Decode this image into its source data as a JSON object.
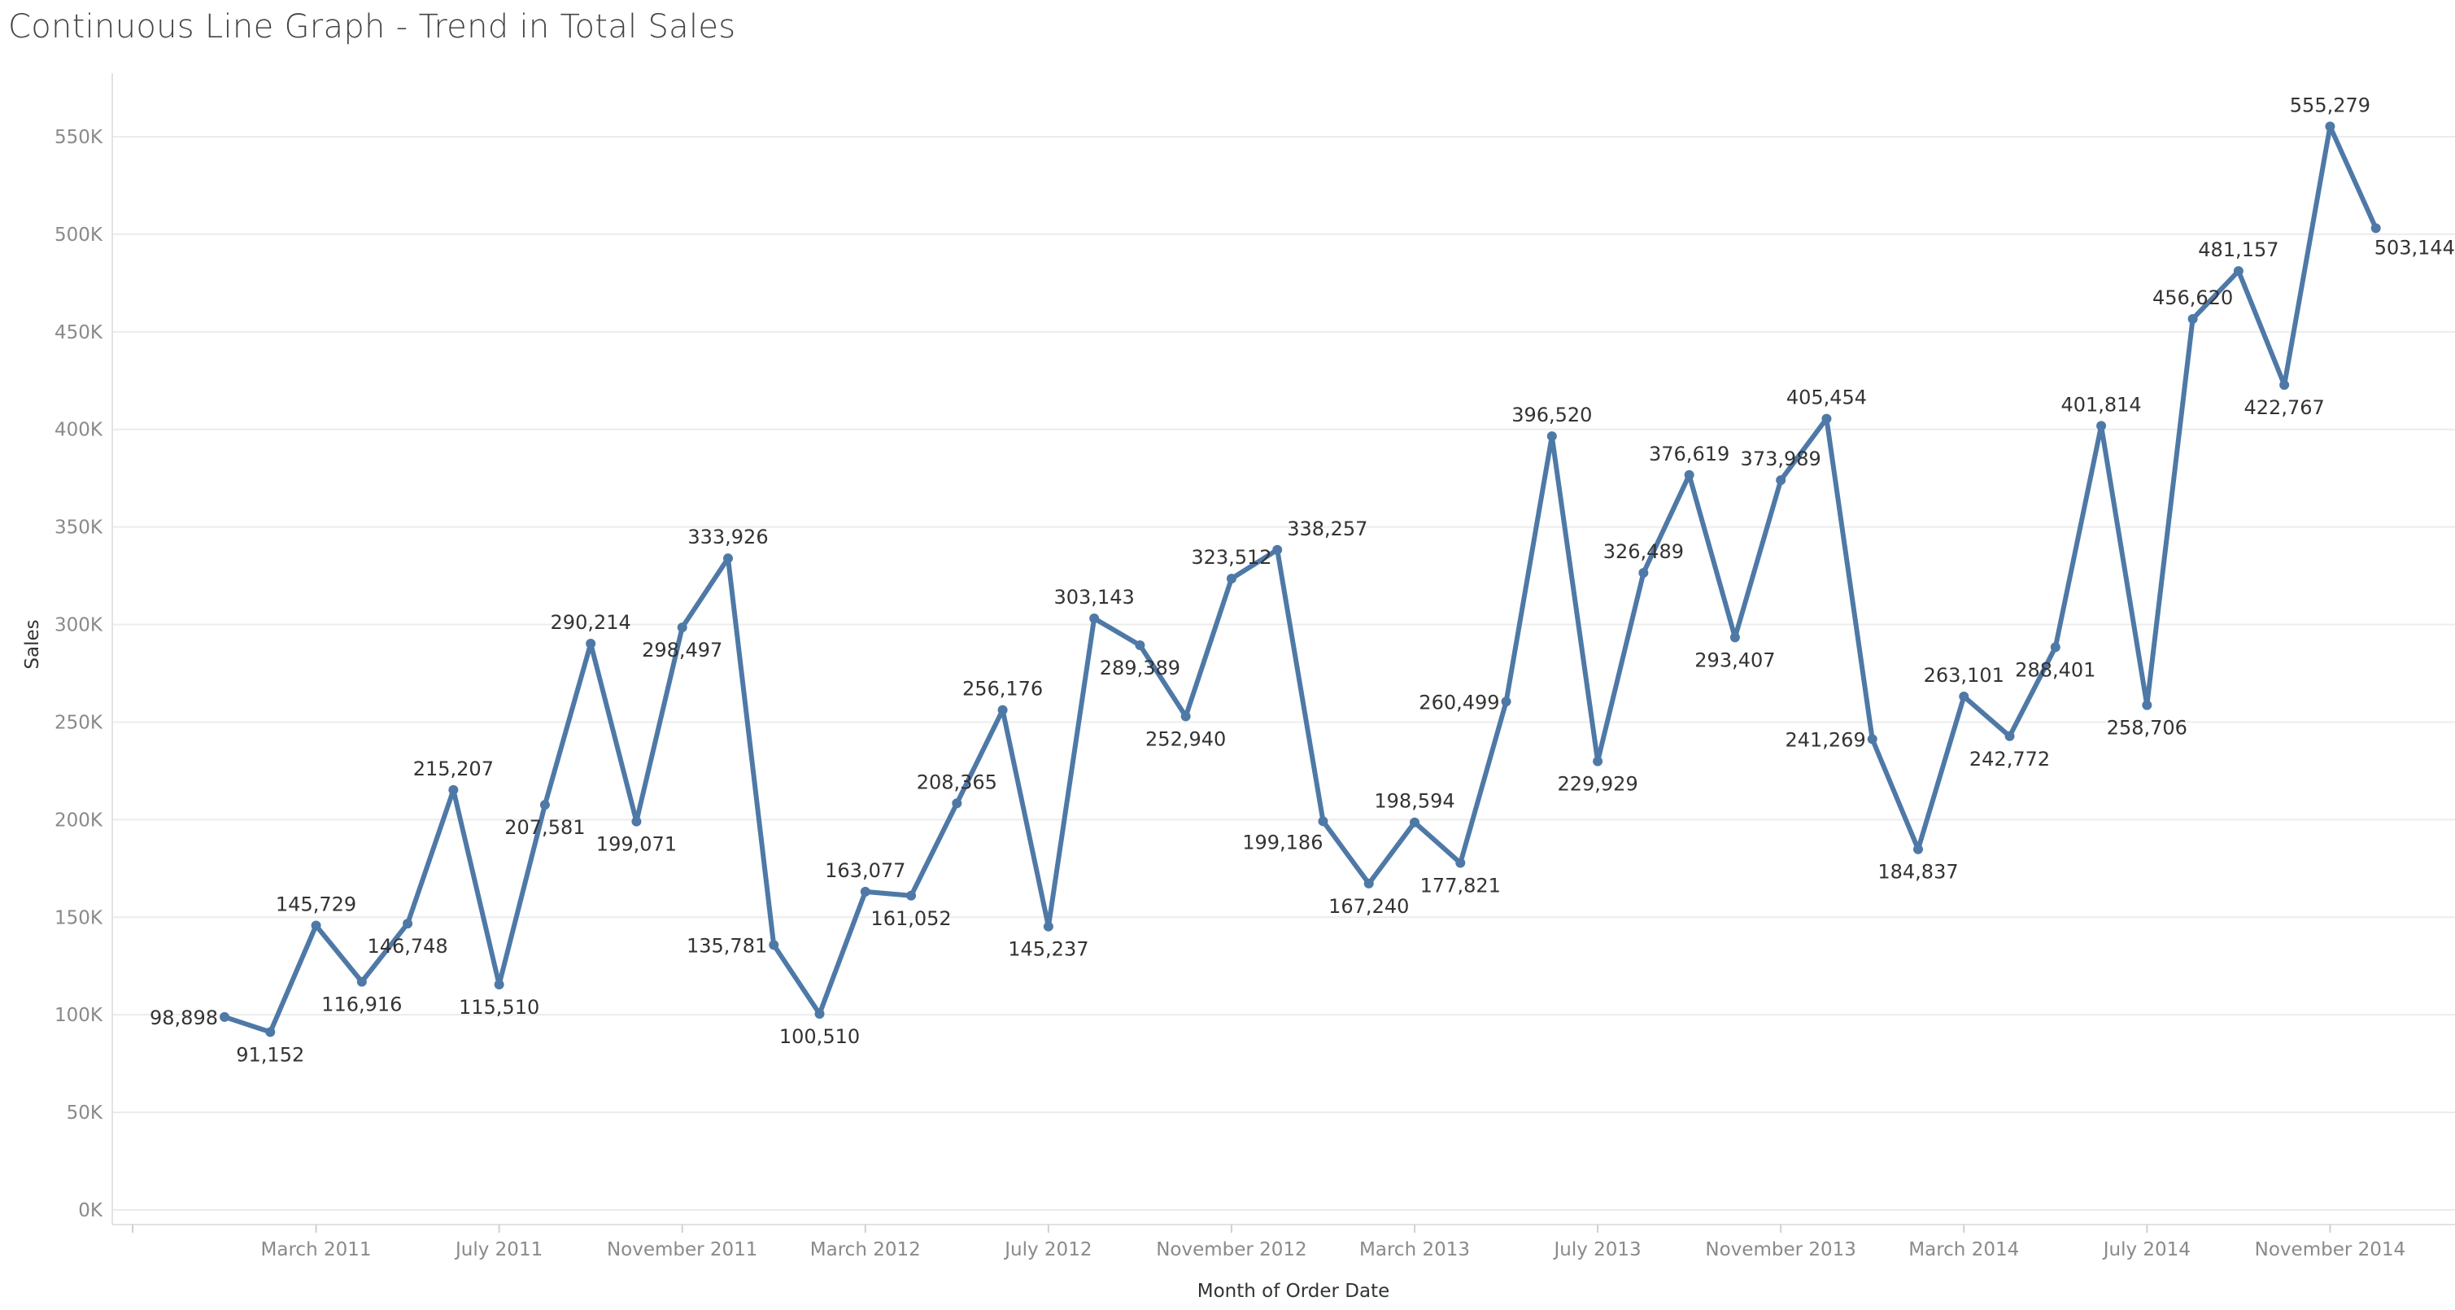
{
  "title": "Continuous Line Graph - Trend in Total Sales",
  "chart_data": {
    "type": "line",
    "title": "Continuous Line Graph - Trend in Total Sales",
    "xlabel": "Month of Order Date",
    "ylabel": "Sales",
    "ylim": [
      0,
      570000
    ],
    "yticks": [
      {
        "value": 0,
        "label": "0K"
      },
      {
        "value": 50000,
        "label": "50K"
      },
      {
        "value": 100000,
        "label": "100K"
      },
      {
        "value": 150000,
        "label": "150K"
      },
      {
        "value": 200000,
        "label": "200K"
      },
      {
        "value": 250000,
        "label": "250K"
      },
      {
        "value": 300000,
        "label": "300K"
      },
      {
        "value": 350000,
        "label": "350K"
      },
      {
        "value": 400000,
        "label": "400K"
      },
      {
        "value": 450000,
        "label": "450K"
      },
      {
        "value": 500000,
        "label": "500K"
      },
      {
        "value": 550000,
        "label": "550K"
      }
    ],
    "xticks": [
      {
        "date": "2011-03",
        "label": "March 2011"
      },
      {
        "date": "2011-07",
        "label": "July 2011"
      },
      {
        "date": "2011-11",
        "label": "November 2011"
      },
      {
        "date": "2012-03",
        "label": "March 2012"
      },
      {
        "date": "2012-07",
        "label": "July 2012"
      },
      {
        "date": "2012-11",
        "label": "November 2012"
      },
      {
        "date": "2013-03",
        "label": "March 2013"
      },
      {
        "date": "2013-07",
        "label": "July 2013"
      },
      {
        "date": "2013-11",
        "label": "November 2013"
      },
      {
        "date": "2014-03",
        "label": "March 2014"
      },
      {
        "date": "2014-07",
        "label": "July 2014"
      },
      {
        "date": "2014-11",
        "label": "November 2014"
      }
    ],
    "line_color": "#4e79a7",
    "series": [
      {
        "points": [
          {
            "date": "2011-01",
            "value": 98898,
            "label": "98,898"
          },
          {
            "date": "2011-02",
            "value": 91152,
            "label": "91,152"
          },
          {
            "date": "2011-03",
            "value": 145729,
            "label": "145,729"
          },
          {
            "date": "2011-04",
            "value": 116916,
            "label": "116,916"
          },
          {
            "date": "2011-05",
            "value": 146748,
            "label": "146,748"
          },
          {
            "date": "2011-06",
            "value": 215207,
            "label": "215,207"
          },
          {
            "date": "2011-07",
            "value": 115510,
            "label": "115,510"
          },
          {
            "date": "2011-08",
            "value": 207581,
            "label": "207,581"
          },
          {
            "date": "2011-09",
            "value": 290214,
            "label": "290,214"
          },
          {
            "date": "2011-10",
            "value": 199071,
            "label": "199,071"
          },
          {
            "date": "2011-11",
            "value": 298497,
            "label": "298,497"
          },
          {
            "date": "2011-12",
            "value": 333926,
            "label": "333,926"
          },
          {
            "date": "2012-01",
            "value": 135781,
            "label": "135,781"
          },
          {
            "date": "2012-02",
            "value": 100510,
            "label": "100,510"
          },
          {
            "date": "2012-03",
            "value": 163077,
            "label": "163,077"
          },
          {
            "date": "2012-04",
            "value": 161052,
            "label": "161,052"
          },
          {
            "date": "2012-05",
            "value": 208365,
            "label": "208,365"
          },
          {
            "date": "2012-06",
            "value": 256176,
            "label": "256,176"
          },
          {
            "date": "2012-07",
            "value": 145237,
            "label": "145,237"
          },
          {
            "date": "2012-08",
            "value": 303143,
            "label": "303,143"
          },
          {
            "date": "2012-09",
            "value": 289389,
            "label": "289,389"
          },
          {
            "date": "2012-10",
            "value": 252940,
            "label": "252,940"
          },
          {
            "date": "2012-11",
            "value": 323512,
            "label": "323,512"
          },
          {
            "date": "2012-12",
            "value": 338257,
            "label": "338,257"
          },
          {
            "date": "2013-01",
            "value": 199186,
            "label": "199,186"
          },
          {
            "date": "2013-02",
            "value": 167240,
            "label": "167,240"
          },
          {
            "date": "2013-03",
            "value": 198594,
            "label": "198,594"
          },
          {
            "date": "2013-04",
            "value": 177821,
            "label": "177,821"
          },
          {
            "date": "2013-05",
            "value": 260499,
            "label": "260,499"
          },
          {
            "date": "2013-06",
            "value": 396520,
            "label": "396,520"
          },
          {
            "date": "2013-07",
            "value": 229929,
            "label": "229,929"
          },
          {
            "date": "2013-08",
            "value": 326489,
            "label": "326,489"
          },
          {
            "date": "2013-09",
            "value": 376619,
            "label": "376,619"
          },
          {
            "date": "2013-10",
            "value": 293407,
            "label": "293,407"
          },
          {
            "date": "2013-11",
            "value": 373989,
            "label": "373,989"
          },
          {
            "date": "2013-12",
            "value": 405454,
            "label": "405,454"
          },
          {
            "date": "2014-01",
            "value": 241269,
            "label": "241,269"
          },
          {
            "date": "2014-02",
            "value": 184837,
            "label": "184,837"
          },
          {
            "date": "2014-03",
            "value": 263101,
            "label": "263,101"
          },
          {
            "date": "2014-04",
            "value": 242772,
            "label": "242,772"
          },
          {
            "date": "2014-05",
            "value": 288401,
            "label": "288,401"
          },
          {
            "date": "2014-06",
            "value": 401814,
            "label": "401,814"
          },
          {
            "date": "2014-07",
            "value": 258706,
            "label": "258,706"
          },
          {
            "date": "2014-08",
            "value": 456620,
            "label": "456,620"
          },
          {
            "date": "2014-09",
            "value": 481157,
            "label": "481,157"
          },
          {
            "date": "2014-10",
            "value": 422767,
            "label": "422,767"
          },
          {
            "date": "2014-11",
            "value": 555279,
            "label": "555,279"
          },
          {
            "date": "2014-12",
            "value": 503144,
            "label": "503,144"
          }
        ]
      }
    ]
  }
}
